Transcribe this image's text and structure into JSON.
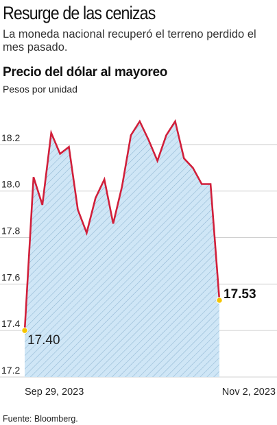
{
  "header": {
    "title": "Resurge de las cenizas",
    "subtitle": "La moneda nacional recuperó el terreno perdido el mes pasado."
  },
  "footer": {
    "source": "Fuente: Bloomberg."
  },
  "colors": {
    "line": "#d11f3a",
    "area_fill": "#cfe6f6",
    "hatch": "#8fb6d2",
    "marker": "#f5c400",
    "grid": "#d0d0d0"
  },
  "chart_data": {
    "type": "area",
    "title": "Precio del dólar al mayoreo",
    "ylabel": "Pesos por unidad",
    "xlabel": "",
    "ylim": [
      17.2,
      18.35
    ],
    "yticks": [
      17.2,
      17.4,
      17.6,
      17.8,
      18.0,
      18.2
    ],
    "ytick_labels": [
      "17.2",
      "17.4",
      "17.6",
      "17.8",
      "18.0",
      "18.2"
    ],
    "x_tick_labels": [
      "Sep 29, 2023",
      "Nov 2, 2023"
    ],
    "x_range": [
      "2023-09-29",
      "2023-11-02"
    ],
    "grid": true,
    "series": [
      {
        "values": [
          17.4,
          18.06,
          17.94,
          18.25,
          18.16,
          18.19,
          17.92,
          17.82,
          17.97,
          18.05,
          17.86,
          18.02,
          18.24,
          18.3,
          18.22,
          18.13,
          18.24,
          18.3,
          18.14,
          18.1,
          18.03,
          18.03,
          17.53
        ]
      }
    ],
    "annotations": [
      {
        "label": "17.40",
        "index": 0
      },
      {
        "label": "17.53",
        "index": 22
      }
    ]
  }
}
